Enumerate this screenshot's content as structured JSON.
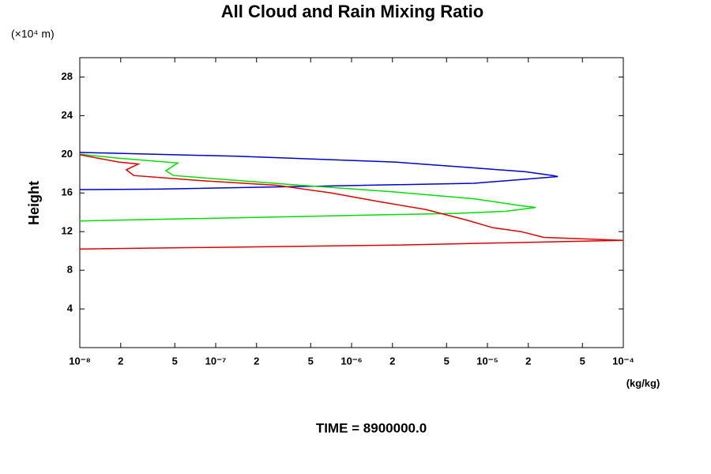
{
  "chart_data": {
    "type": "line",
    "title": "All Cloud and Rain Mixing Ratio",
    "y_units": "(×10⁴ m)",
    "ylabel": "Height",
    "x_units": "(kg/kg)",
    "time_label": "TIME = 8900000.0",
    "xscale": "log",
    "xlim": [
      1e-08,
      0.0001
    ],
    "ylim": [
      0,
      30
    ],
    "xticks": [
      {
        "value": 1e-08,
        "label": "10⁻⁸"
      },
      {
        "value": 2e-08,
        "label": "2"
      },
      {
        "value": 5e-08,
        "label": "5"
      },
      {
        "value": 1e-07,
        "label": "10⁻⁷"
      },
      {
        "value": 2e-07,
        "label": "2"
      },
      {
        "value": 5e-07,
        "label": "5"
      },
      {
        "value": 1e-06,
        "label": "10⁻⁶"
      },
      {
        "value": 2e-06,
        "label": "2"
      },
      {
        "value": 5e-06,
        "label": "5"
      },
      {
        "value": 1e-05,
        "label": "10⁻⁵"
      },
      {
        "value": 2e-05,
        "label": "2"
      },
      {
        "value": 5e-05,
        "label": "5"
      },
      {
        "value": 0.0001,
        "label": "10⁻⁴"
      }
    ],
    "yticks": [
      4,
      8,
      12,
      16,
      20,
      24,
      28
    ],
    "series": [
      {
        "color": "#0000cc",
        "x": [
          1e-08,
          1.44e-07,
          2.08e-06,
          7.96e-06,
          1.9e-05,
          3.04e-05,
          3.3e-05,
          7.96e-06,
          5.47e-07,
          3.77e-08,
          1e-08
        ],
        "y": [
          20.2,
          19.8,
          19.2,
          18.6,
          18.2,
          17.8,
          17.7,
          17.0,
          16.7,
          16.4,
          16.35
        ]
      },
      {
        "color": "#00dd00",
        "x": [
          1e-08,
          1.93e-08,
          5.26e-08,
          4.3e-08,
          4.9e-08,
          1.44e-07,
          4.2e-07,
          2.08e-06,
          7.96e-06,
          1.74e-05,
          2.27e-05,
          1.36e-05,
          6.1e-06,
          5.47e-07,
          1e-08
        ],
        "y": [
          20.0,
          19.6,
          19.1,
          18.3,
          17.8,
          17.3,
          16.8,
          16.1,
          15.4,
          14.7,
          14.5,
          14.1,
          13.9,
          13.6,
          13.1
        ]
      },
      {
        "color": "#dd0000",
        "x": [
          1e-08,
          1.93e-08,
          2.7e-08,
          2.2e-08,
          2.5e-08,
          7.4e-08,
          2.8e-07,
          7.1e-07,
          1.6e-06,
          3.5e-06,
          7e-06,
          1.1e-05,
          1.77e-05,
          2.6e-05,
          0.0001,
          2.08e-06,
          1e-08
        ],
        "y": [
          19.95,
          19.2,
          19.0,
          18.4,
          17.8,
          17.3,
          16.8,
          16.0,
          15.1,
          14.3,
          13.2,
          12.4,
          12.0,
          11.4,
          11.1,
          10.6,
          10.2
        ]
      }
    ]
  }
}
